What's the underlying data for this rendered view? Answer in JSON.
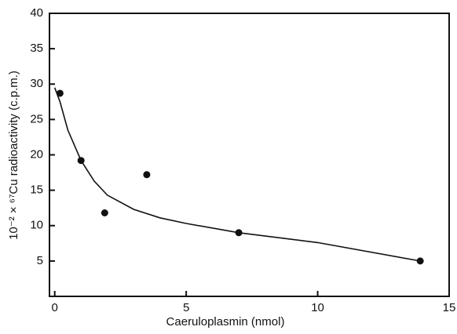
{
  "chart_data": {
    "type": "scatter",
    "x_label": "Caeruloplasmin (nmol)",
    "y_label": "10⁻² × ⁶⁷Cu radioactivity (c.p.m.)",
    "xlim": [
      -0.2,
      15
    ],
    "ylim": [
      0,
      40
    ],
    "xticks": [
      0,
      5,
      10,
      15
    ],
    "yticks": [
      5,
      10,
      15,
      20,
      25,
      30,
      35,
      40
    ],
    "series": [
      {
        "style": "points",
        "color": "#111111",
        "x": [
          0.2,
          1.0,
          1.9,
          3.5,
          7.0,
          13.9
        ],
        "values": [
          28.7,
          19.2,
          11.8,
          17.2,
          9.0,
          5.0
        ]
      },
      {
        "style": "curve",
        "color": "#111111",
        "x": [
          0.0,
          0.2,
          0.5,
          1.0,
          1.5,
          2.0,
          3.0,
          4.0,
          5.0,
          7.0,
          10.0,
          13.9
        ],
        "values": [
          29.5,
          27.5,
          23.5,
          19.2,
          16.3,
          14.3,
          12.3,
          11.1,
          10.3,
          9.0,
          7.6,
          5.0
        ]
      }
    ]
  }
}
